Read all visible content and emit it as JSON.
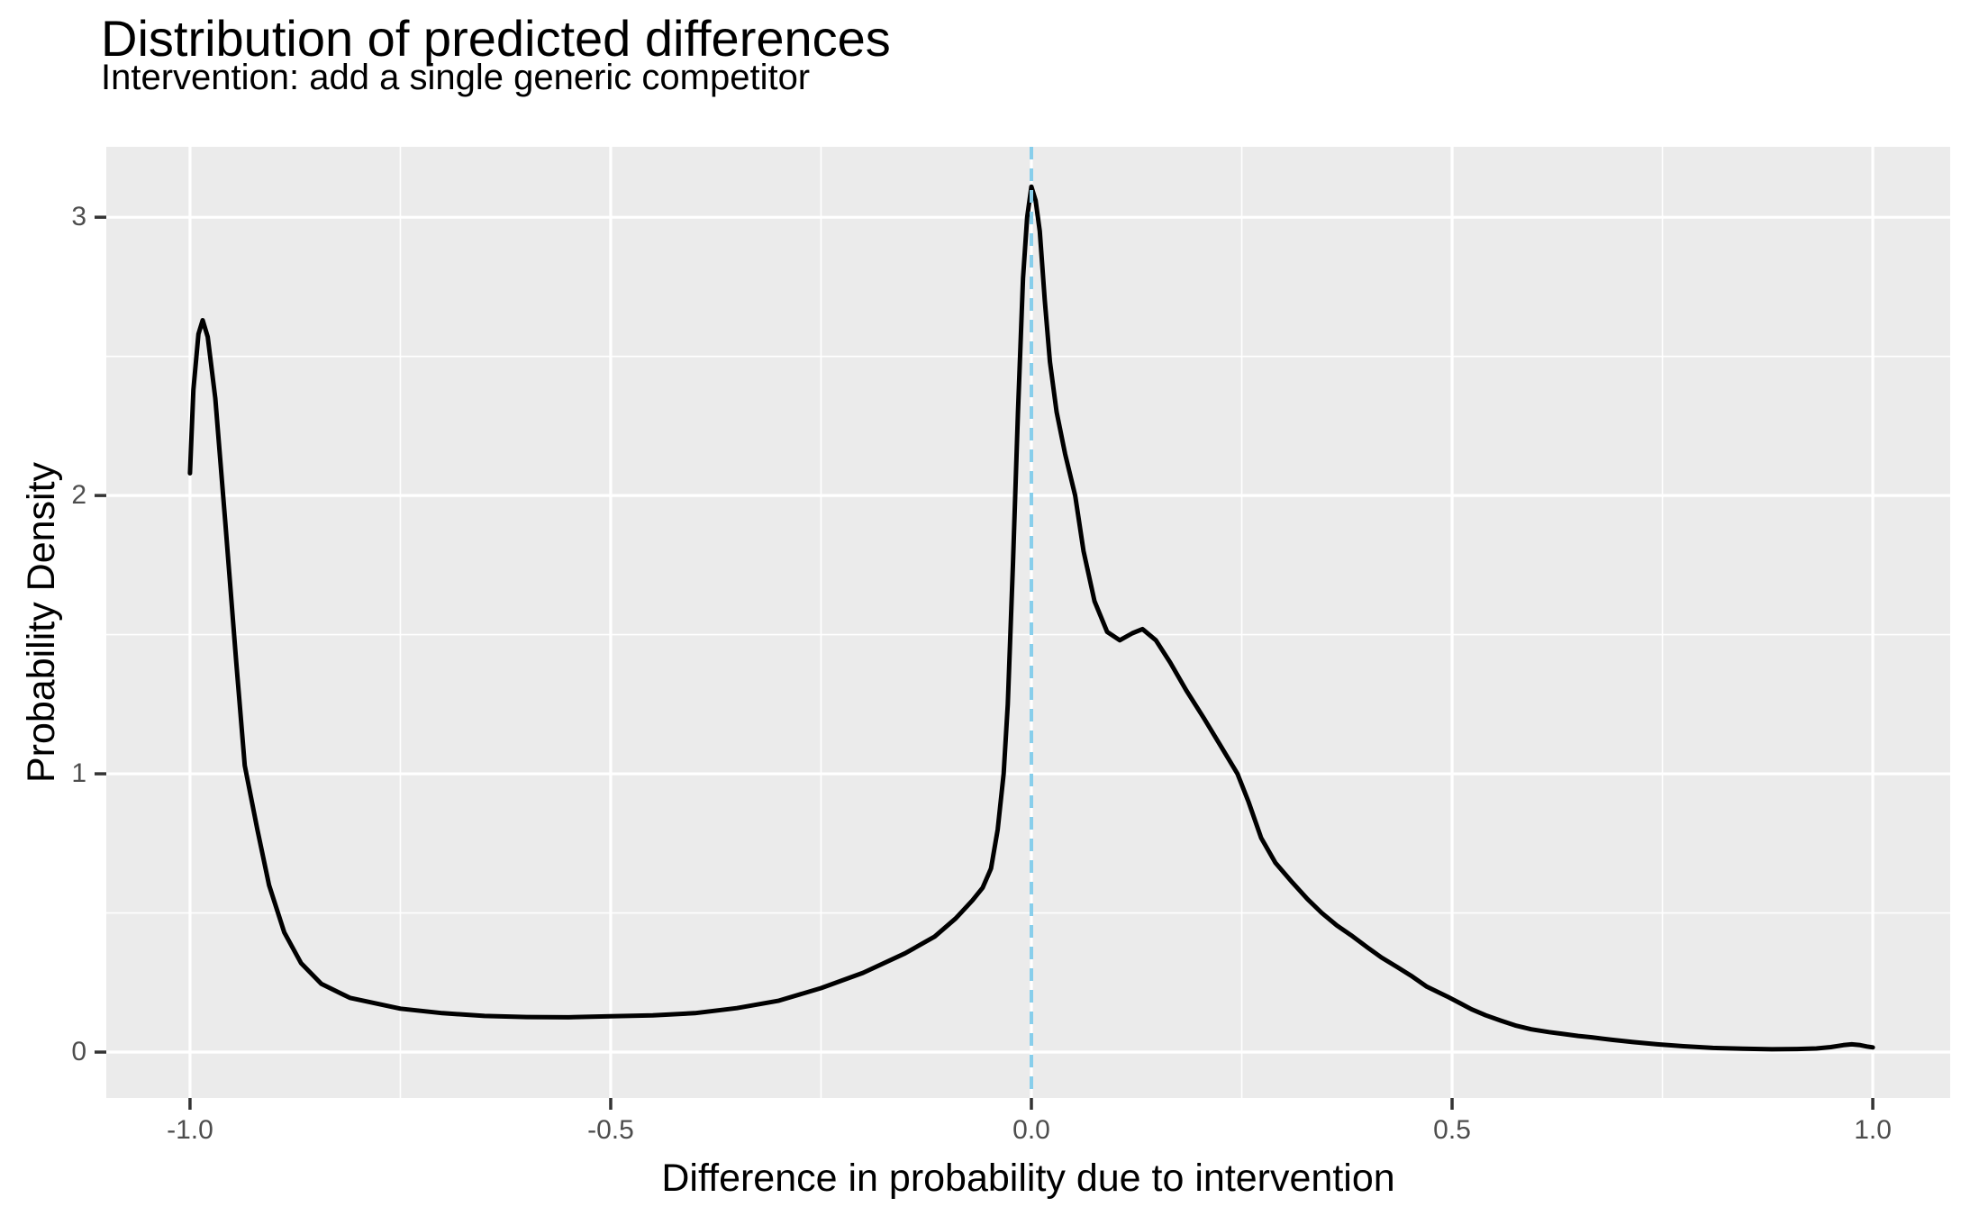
{
  "chart_data": {
    "type": "line",
    "title": "Distribution of predicted differences",
    "subtitle": "Intervention: add a single generic competitor",
    "xlabel": "Difference in probability due to intervention",
    "ylabel": "Probability Density",
    "xlim": [
      -1.0995,
      1.092
    ],
    "ylim": [
      -0.165,
      3.253
    ],
    "grid": "major-and-minor, white on grey panel",
    "legend": "none",
    "x_ticks": [
      {
        "v": -1.0,
        "label": "-1.0"
      },
      {
        "v": -0.5,
        "label": "-0.5"
      },
      {
        "v": 0.0,
        "label": "0.0"
      },
      {
        "v": 0.5,
        "label": "0.5"
      },
      {
        "v": 1.0,
        "label": "1.0"
      }
    ],
    "y_ticks": [
      {
        "v": 0,
        "label": "0"
      },
      {
        "v": 1,
        "label": "1"
      },
      {
        "v": 2,
        "label": "2"
      },
      {
        "v": 3,
        "label": "3"
      }
    ],
    "x_minor_breaks": [
      -0.75,
      -0.25,
      0.25,
      0.75
    ],
    "y_minor_breaks": [
      0.5,
      1.5,
      2.5
    ],
    "reference_line": {
      "x": 0.0,
      "style": "dashed",
      "color": "#87CEEB",
      "width": 4,
      "dash": "14 10"
    },
    "series": [
      {
        "name": "density-of-predicted-differences",
        "color": "#000000",
        "width": 5,
        "points": [
          [
            -1.0,
            2.08
          ],
          [
            -0.996,
            2.38
          ],
          [
            -0.99,
            2.58
          ],
          [
            -0.985,
            2.63
          ],
          [
            -0.979,
            2.57
          ],
          [
            -0.97,
            2.35
          ],
          [
            -0.958,
            1.9
          ],
          [
            -0.945,
            1.4
          ],
          [
            -0.935,
            1.03
          ],
          [
            -0.92,
            0.8
          ],
          [
            -0.906,
            0.6
          ],
          [
            -0.888,
            0.43
          ],
          [
            -0.868,
            0.32
          ],
          [
            -0.844,
            0.245
          ],
          [
            -0.81,
            0.195
          ],
          [
            -0.75,
            0.156
          ],
          [
            -0.7,
            0.14
          ],
          [
            -0.65,
            0.13
          ],
          [
            -0.6,
            0.126
          ],
          [
            -0.55,
            0.125
          ],
          [
            -0.5,
            0.129
          ],
          [
            -0.45,
            0.132
          ],
          [
            -0.4,
            0.14
          ],
          [
            -0.35,
            0.158
          ],
          [
            -0.3,
            0.185
          ],
          [
            -0.25,
            0.23
          ],
          [
            -0.2,
            0.285
          ],
          [
            -0.15,
            0.355
          ],
          [
            -0.115,
            0.415
          ],
          [
            -0.09,
            0.48
          ],
          [
            -0.07,
            0.545
          ],
          [
            -0.058,
            0.59
          ],
          [
            -0.048,
            0.66
          ],
          [
            -0.04,
            0.8
          ],
          [
            -0.033,
            1.0
          ],
          [
            -0.028,
            1.25
          ],
          [
            -0.022,
            1.75
          ],
          [
            -0.016,
            2.3
          ],
          [
            -0.01,
            2.78
          ],
          [
            -0.005,
            3.0
          ],
          [
            0.0,
            3.11
          ],
          [
            0.005,
            3.06
          ],
          [
            0.01,
            2.95
          ],
          [
            0.016,
            2.7
          ],
          [
            0.022,
            2.48
          ],
          [
            0.03,
            2.3
          ],
          [
            0.04,
            2.15
          ],
          [
            0.052,
            2.0
          ],
          [
            0.062,
            1.8
          ],
          [
            0.075,
            1.62
          ],
          [
            0.09,
            1.51
          ],
          [
            0.105,
            1.48
          ],
          [
            0.12,
            1.505
          ],
          [
            0.132,
            1.52
          ],
          [
            0.148,
            1.48
          ],
          [
            0.165,
            1.4
          ],
          [
            0.184,
            1.3
          ],
          [
            0.205,
            1.2
          ],
          [
            0.225,
            1.1
          ],
          [
            0.245,
            1.0
          ],
          [
            0.258,
            0.9
          ],
          [
            0.273,
            0.77
          ],
          [
            0.29,
            0.68
          ],
          [
            0.31,
            0.61
          ],
          [
            0.328,
            0.55
          ],
          [
            0.345,
            0.5
          ],
          [
            0.363,
            0.455
          ],
          [
            0.38,
            0.42
          ],
          [
            0.4,
            0.375
          ],
          [
            0.416,
            0.34
          ],
          [
            0.435,
            0.305
          ],
          [
            0.451,
            0.275
          ],
          [
            0.47,
            0.235
          ],
          [
            0.494,
            0.2
          ],
          [
            0.51,
            0.175
          ],
          [
            0.523,
            0.154
          ],
          [
            0.54,
            0.132
          ],
          [
            0.558,
            0.113
          ],
          [
            0.575,
            0.096
          ],
          [
            0.594,
            0.082
          ],
          [
            0.615,
            0.072
          ],
          [
            0.63,
            0.066
          ],
          [
            0.65,
            0.058
          ],
          [
            0.666,
            0.053
          ],
          [
            0.69,
            0.044
          ],
          [
            0.715,
            0.036
          ],
          [
            0.744,
            0.028
          ],
          [
            0.775,
            0.021
          ],
          [
            0.81,
            0.015
          ],
          [
            0.845,
            0.012
          ],
          [
            0.88,
            0.01
          ],
          [
            0.91,
            0.011
          ],
          [
            0.933,
            0.013
          ],
          [
            0.95,
            0.018
          ],
          [
            0.965,
            0.025
          ],
          [
            0.975,
            0.028
          ],
          [
            0.985,
            0.025
          ],
          [
            0.993,
            0.02
          ],
          [
            1.0,
            0.017
          ]
        ]
      }
    ],
    "colors": {
      "panel_bg": "#EBEBEB",
      "grid": "#FFFFFF",
      "axis_text": "#4D4D4D",
      "tick_marks": "#333333",
      "title_text": "#000000",
      "curve": "#000000",
      "reference": "#87CEEB"
    }
  }
}
